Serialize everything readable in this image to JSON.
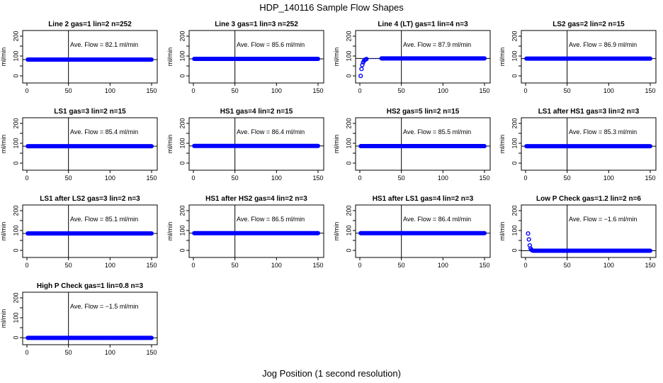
{
  "figure": {
    "title": "HDP_140116  Sample Flow Shapes",
    "xlabel": "Jog Position (1 second resolution)"
  },
  "style": {
    "point_color": "#0000ff",
    "axis_color": "#000000",
    "background": "#ffffff"
  },
  "chart_data": [
    {
      "type": "scatter",
      "title": "Line 2 gas=1 lin=2 n=252",
      "ylabel": "ml/min",
      "xlim": [
        0,
        150
      ],
      "ylim": [
        0,
        200
      ],
      "xticks": [
        0,
        50,
        100,
        150
      ],
      "yticks": [
        0,
        100,
        200
      ],
      "yticks_minor": [
        50,
        150
      ],
      "vline_x": 50,
      "hline_y": 82.1,
      "annotation": "Ave. Flow =  82.1  ml/min",
      "series": [
        {
          "x": [
            1,
            150
          ],
          "y": [
            82.1,
            82.1
          ],
          "shape": "flat"
        }
      ]
    },
    {
      "type": "scatter",
      "title": "Line 3 gas=1 lin=3 n=252",
      "ylabel": "ml/min",
      "xlim": [
        0,
        150
      ],
      "ylim": [
        0,
        200
      ],
      "xticks": [
        0,
        50,
        100,
        150
      ],
      "yticks": [
        0,
        100,
        200
      ],
      "yticks_minor": [
        50,
        150
      ],
      "vline_x": 50,
      "hline_y": 85.6,
      "annotation": "Ave. Flow =  85.6  ml/min",
      "series": [
        {
          "x": [
            1,
            150
          ],
          "y": [
            85.6,
            85.6
          ],
          "shape": "flat"
        }
      ]
    },
    {
      "type": "scatter",
      "title": "Line 4 (LT) gas=1 lin=4 n=3",
      "ylabel": "ml/min",
      "xlim": [
        0,
        150
      ],
      "ylim": [
        0,
        200
      ],
      "xticks": [
        0,
        50,
        100,
        150
      ],
      "yticks": [
        0,
        100,
        200
      ],
      "yticks_minor": [
        50,
        150
      ],
      "vline_x": 50,
      "hline_y": 87.9,
      "annotation": "Ave. Flow =  87.9  ml/min",
      "series": [
        {
          "x": [
            1,
            150
          ],
          "y": [
            87.9,
            87.9
          ],
          "shape": "rise",
          "rise_points": [
            [
              1,
              0
            ],
            [
              2,
              35
            ],
            [
              3,
              55
            ],
            [
              4,
              68
            ],
            [
              5,
              76
            ],
            [
              6,
              80
            ],
            [
              7,
              83
            ],
            [
              8,
              85
            ]
          ],
          "sparse_points": [
            [
              10,
              86
            ],
            [
              13,
              87
            ],
            [
              16,
              87
            ],
            [
              19,
              87
            ],
            [
              22,
              87
            ],
            [
              25,
              87
            ]
          ],
          "dense_from": 26
        }
      ]
    },
    {
      "type": "scatter",
      "title": "LS2 gas=2 lin=2 n=15",
      "ylabel": "ml/min",
      "xlim": [
        0,
        150
      ],
      "ylim": [
        0,
        200
      ],
      "xticks": [
        0,
        50,
        100,
        150
      ],
      "yticks": [
        0,
        100,
        200
      ],
      "yticks_minor": [
        50,
        150
      ],
      "vline_x": 50,
      "hline_y": 86.9,
      "annotation": "Ave. Flow =  86.9  ml/min",
      "series": [
        {
          "x": [
            1,
            150
          ],
          "y": [
            86.9,
            86.9
          ],
          "shape": "flat"
        }
      ]
    },
    {
      "type": "scatter",
      "title": "LS1 gas=3 lin=2 n=15",
      "ylabel": "ml/min",
      "xlim": [
        0,
        150
      ],
      "ylim": [
        0,
        200
      ],
      "xticks": [
        0,
        50,
        100,
        150
      ],
      "yticks": [
        0,
        100,
        200
      ],
      "yticks_minor": [
        50,
        150
      ],
      "vline_x": 50,
      "hline_y": 85.4,
      "annotation": "Ave. Flow =  85.4  ml/min",
      "series": [
        {
          "x": [
            1,
            150
          ],
          "y": [
            85.4,
            85.4
          ],
          "shape": "flat"
        }
      ]
    },
    {
      "type": "scatter",
      "title": "HS1 gas=4 lin=2 n=15",
      "ylabel": "ml/min",
      "xlim": [
        0,
        150
      ],
      "ylim": [
        0,
        200
      ],
      "xticks": [
        0,
        50,
        100,
        150
      ],
      "yticks": [
        0,
        100,
        200
      ],
      "yticks_minor": [
        50,
        150
      ],
      "vline_x": 50,
      "hline_y": 86.4,
      "annotation": "Ave. Flow =  86.4  ml/min",
      "series": [
        {
          "x": [
            1,
            150
          ],
          "y": [
            86.4,
            86.4
          ],
          "shape": "flat"
        }
      ]
    },
    {
      "type": "scatter",
      "title": "HS2 gas=5 lin=2 n=15",
      "ylabel": "ml/min",
      "xlim": [
        0,
        150
      ],
      "ylim": [
        0,
        200
      ],
      "xticks": [
        0,
        50,
        100,
        150
      ],
      "yticks": [
        0,
        100,
        200
      ],
      "yticks_minor": [
        50,
        150
      ],
      "vline_x": 50,
      "hline_y": 85.5,
      "annotation": "Ave. Flow =  85.5  ml/min",
      "series": [
        {
          "x": [
            1,
            150
          ],
          "y": [
            85.5,
            85.5
          ],
          "shape": "flat"
        }
      ]
    },
    {
      "type": "scatter",
      "title": "LS1 after HS1 gas=3 lin=2 n=3",
      "ylabel": "ml/min",
      "xlim": [
        0,
        150
      ],
      "ylim": [
        0,
        200
      ],
      "xticks": [
        0,
        50,
        100,
        150
      ],
      "yticks": [
        0,
        100,
        200
      ],
      "yticks_minor": [
        50,
        150
      ],
      "vline_x": 50,
      "hline_y": 85.3,
      "annotation": "Ave. Flow =  85.3  ml/min",
      "series": [
        {
          "x": [
            1,
            150
          ],
          "y": [
            85.3,
            85.3
          ],
          "shape": "flat"
        }
      ]
    },
    {
      "type": "scatter",
      "title": "LS1 after LS2 gas=3 lin=2 n=3",
      "ylabel": "ml/min",
      "xlim": [
        0,
        150
      ],
      "ylim": [
        0,
        200
      ],
      "xticks": [
        0,
        50,
        100,
        150
      ],
      "yticks": [
        0,
        100,
        200
      ],
      "yticks_minor": [
        50,
        150
      ],
      "vline_x": 50,
      "hline_y": 85.1,
      "annotation": "Ave. Flow =  85.1  ml/min",
      "series": [
        {
          "x": [
            1,
            150
          ],
          "y": [
            85.1,
            85.1
          ],
          "shape": "flat"
        }
      ]
    },
    {
      "type": "scatter",
      "title": "HS1 after HS2 gas=4 lin=2 n=3",
      "ylabel": "ml/min",
      "xlim": [
        0,
        150
      ],
      "ylim": [
        0,
        200
      ],
      "xticks": [
        0,
        50,
        100,
        150
      ],
      "yticks": [
        0,
        100,
        200
      ],
      "yticks_minor": [
        50,
        150
      ],
      "vline_x": 50,
      "hline_y": 86.5,
      "annotation": "Ave. Flow =  86.5  ml/min",
      "series": [
        {
          "x": [
            1,
            150
          ],
          "y": [
            86.5,
            86.5
          ],
          "shape": "flat"
        }
      ]
    },
    {
      "type": "scatter",
      "title": "HS1 after LS1 gas=4 lin=2 n=3",
      "ylabel": "ml/min",
      "xlim": [
        0,
        150
      ],
      "ylim": [
        0,
        200
      ],
      "xticks": [
        0,
        50,
        100,
        150
      ],
      "yticks": [
        0,
        100,
        200
      ],
      "yticks_minor": [
        50,
        150
      ],
      "vline_x": 50,
      "hline_y": 86.4,
      "annotation": "Ave. Flow =  86.4  ml/min",
      "series": [
        {
          "x": [
            1,
            150
          ],
          "y": [
            86.4,
            86.4
          ],
          "shape": "flat"
        }
      ]
    },
    {
      "type": "scatter",
      "title": "Low P Check gas=1.2 lin=2 n=6",
      "ylabel": "ml/min",
      "xlim": [
        0,
        150
      ],
      "ylim": [
        0,
        200
      ],
      "xticks": [
        0,
        50,
        100,
        150
      ],
      "yticks": [
        0,
        100,
        200
      ],
      "yticks_minor": [
        50,
        150
      ],
      "vline_x": 50,
      "hline_y": -1.6,
      "annotation": "Ave. Flow =  −1.6  ml/min",
      "series": [
        {
          "x": [
            1,
            150
          ],
          "y": [
            -1.6,
            -1.6
          ],
          "shape": "decay",
          "decay_points": [
            [
              3,
              85
            ],
            [
              4,
              55
            ],
            [
              5,
              25
            ],
            [
              6,
              10
            ],
            [
              7,
              3
            ],
            [
              8,
              0
            ]
          ],
          "dense_from": 9
        }
      ]
    },
    {
      "type": "scatter",
      "title": "High P Check gas=1 lin=0.8 n=3",
      "ylabel": "ml/min",
      "xlim": [
        0,
        150
      ],
      "ylim": [
        0,
        200
      ],
      "xticks": [
        0,
        50,
        100,
        150
      ],
      "yticks": [
        0,
        100,
        200
      ],
      "yticks_minor": [
        50,
        150
      ],
      "vline_x": 50,
      "hline_y": -1.5,
      "annotation": "Ave. Flow =  −1.5  ml/min",
      "series": [
        {
          "x": [
            1,
            150
          ],
          "y": [
            -1.5,
            -1.5
          ],
          "shape": "flat"
        }
      ]
    }
  ]
}
